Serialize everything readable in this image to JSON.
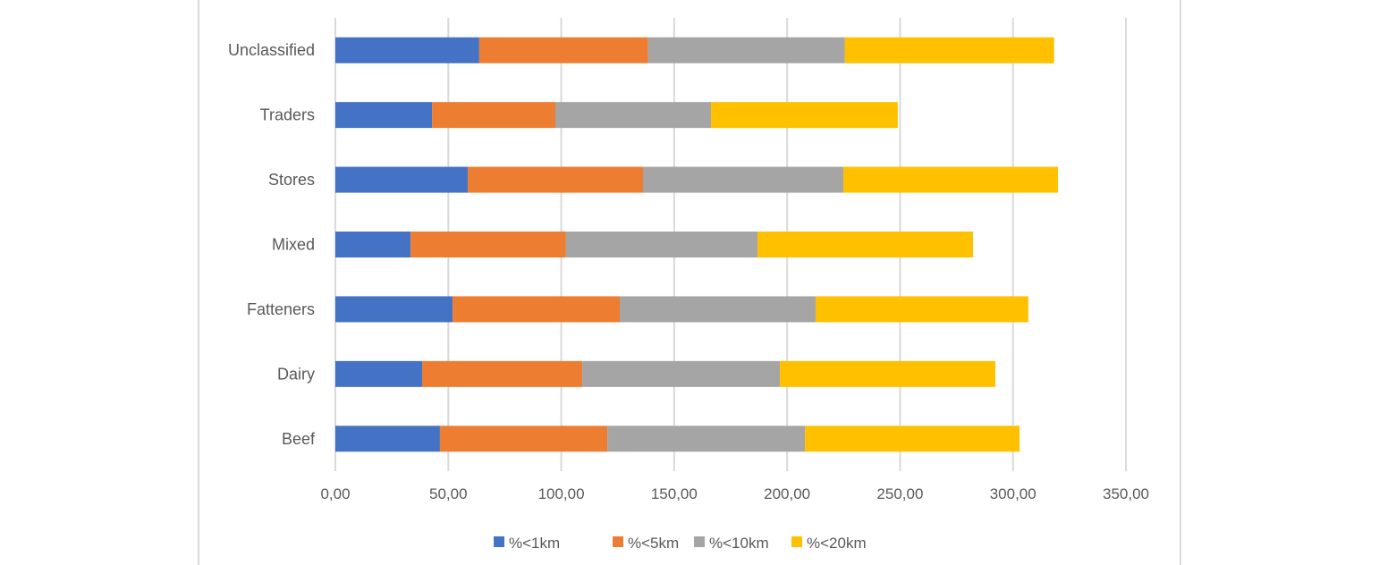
{
  "chart_data": {
    "type": "bar",
    "orientation": "horizontal",
    "stacked": true,
    "title": "",
    "xlabel": "",
    "ylabel": "",
    "categories": [
      "Unclassified",
      "Traders",
      "Stores",
      "Mixed",
      "Fatteners",
      "Dairy",
      "Beef"
    ],
    "series": [
      {
        "name": "%<1km",
        "color": "#4472C4",
        "values": [
          63.7,
          42.8,
          58.6,
          33.3,
          51.9,
          38.4,
          46.3
        ]
      },
      {
        "name": "%<5km",
        "color": "#ED7D31",
        "values": [
          74.8,
          54.6,
          77.6,
          68.8,
          74.0,
          70.9,
          74.1
        ]
      },
      {
        "name": "%<10km",
        "color": "#A5A5A5",
        "values": [
          87.1,
          68.9,
          88.7,
          84.8,
          86.7,
          87.5,
          87.5
        ]
      },
      {
        "name": "%<20km",
        "color": "#FFC000",
        "values": [
          92.6,
          82.7,
          95.0,
          95.4,
          94.2,
          95.4,
          95.0
        ]
      }
    ],
    "xlim": [
      0,
      350
    ],
    "xticks": [
      "0,00",
      "50,00",
      "100,00",
      "150,00",
      "200,00",
      "250,00",
      "300,00",
      "350,00"
    ],
    "grid": true,
    "legend_position": "bottom"
  }
}
